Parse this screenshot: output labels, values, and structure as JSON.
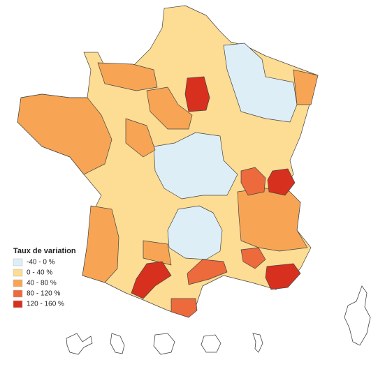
{
  "legend": {
    "title": "Taux de variation",
    "items": [
      {
        "label": "-40 - 0 %",
        "color": "#ddeef6"
      },
      {
        "label": "0 - 40 %",
        "color": "#fddc93"
      },
      {
        "label": "40 - 80 %",
        "color": "#f7a555"
      },
      {
        "label": "80 - 120 %",
        "color": "#ec6a3c"
      },
      {
        "label": "120 - 160 %",
        "color": "#d7301f"
      }
    ]
  }
}
